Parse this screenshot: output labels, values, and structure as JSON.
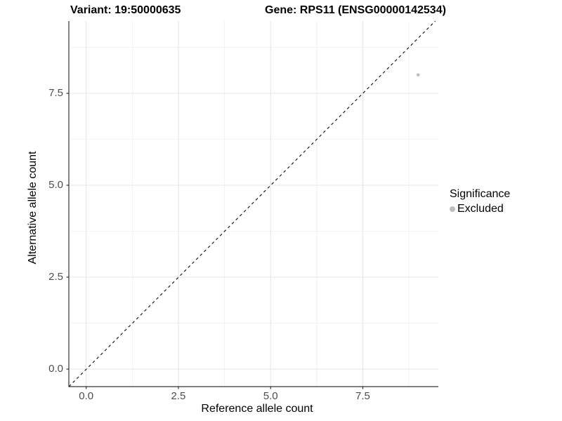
{
  "chart_data": {
    "type": "scatter",
    "title_left": "Variant: 19:50000635",
    "title_right": "Gene: RPS11 (ENSG00000142534)",
    "xlabel": "Reference allele count",
    "ylabel": "Alternative allele count",
    "x_tick_labels": [
      "0.0",
      "2.5",
      "5.0",
      "7.5"
    ],
    "x_tick_values": [
      0,
      2.5,
      5,
      7.5
    ],
    "y_tick_labels": [
      "0.0",
      "2.5",
      "5.0",
      "7.5"
    ],
    "y_tick_values": [
      0,
      2.5,
      5,
      7.5
    ],
    "minor_tick_values": [
      1.25,
      3.75,
      6.25,
      8.75
    ],
    "xlim": [
      -0.47,
      9.57
    ],
    "ylim": [
      -0.48,
      9.47
    ],
    "grid": true,
    "points": [
      {
        "x": 9,
        "y": 8,
        "significance": "Excluded",
        "color": "#BEBEBE"
      }
    ],
    "reference_line": {
      "type": "identity y=x",
      "style": "dashed",
      "color": "#1a1a1a"
    },
    "legend": {
      "title": "Significance",
      "position": "right",
      "items": [
        {
          "label": "Excluded",
          "color": "#BEBEBE"
        }
      ]
    }
  },
  "colors": {
    "background": "#ffffff",
    "grid_major": "#e4e4e4",
    "grid_minor": "#f2f2f2",
    "axis_line": "#333333",
    "tick_mark": "#333333",
    "tick_label": "#4d4d4d",
    "point": "#BEBEBE",
    "dashed_line": "#1a1a1a"
  }
}
